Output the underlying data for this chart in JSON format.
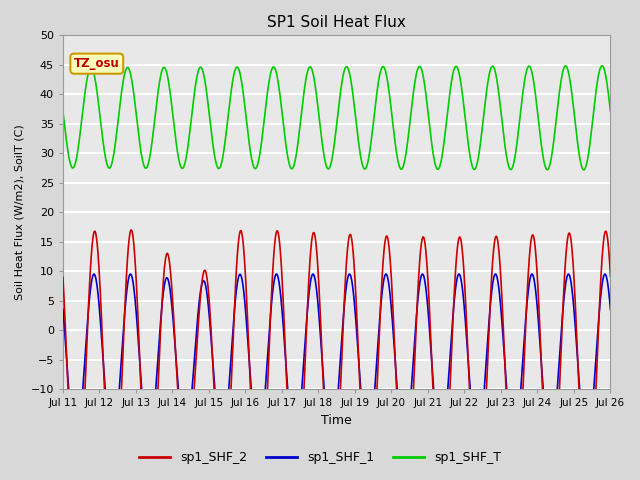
{
  "title": "SP1 Soil Heat Flux",
  "xlabel": "Time",
  "ylabel": "Soil Heat Flux (W/m2), SoilT (C)",
  "ylim": [
    -10,
    50
  ],
  "xlim": [
    0,
    15
  ],
  "tz_label": "TZ_osu",
  "background_color": "#d8d8d8",
  "plot_bg_color": "#e8e8e8",
  "grid_color": "white",
  "x_tick_labels": [
    "Jul 11",
    "Jul 12",
    "Jul 13",
    "Jul 14",
    "Jul 15",
    "Jul 16",
    "Jul 17",
    "Jul 18",
    "Jul 19",
    "Jul 20",
    "Jul 21",
    "Jul 22",
    "Jul 23",
    "Jul 24",
    "Jul 25",
    "Jul 26"
  ],
  "legend_labels": [
    "sp1_SHF_2",
    "sp1_SHF_1",
    "sp1_SHF_T"
  ],
  "legend_colors": [
    "#cc0000",
    "#0000cc",
    "#00cc00"
  ]
}
